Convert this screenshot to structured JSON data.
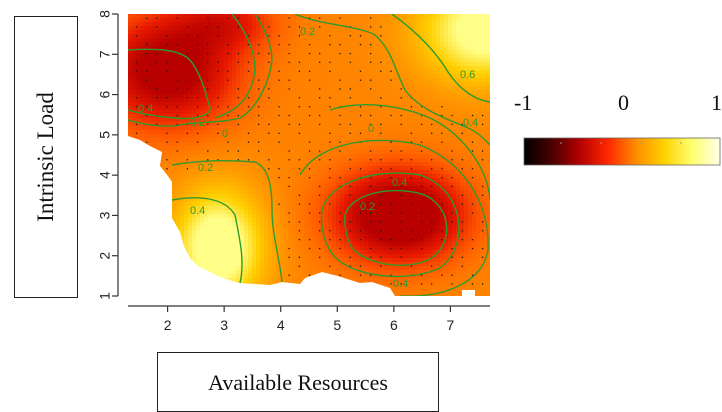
{
  "chart_data": {
    "type": "heatmap",
    "xlabel": "Available Resources",
    "ylabel": "Intrinsic Load",
    "xlim": [
      1.3,
      7.7
    ],
    "ylim": [
      1,
      8
    ],
    "x_ticks": [
      "2",
      "3",
      "4",
      "5",
      "6",
      "7"
    ],
    "y_ticks": [
      "1",
      "2",
      "3",
      "4",
      "5",
      "6",
      "7",
      "8"
    ],
    "contour_levels": [
      0.2,
      0.4,
      0.6
    ],
    "contour_labels": [
      "0.4",
      "0.2",
      "0",
      "0.2",
      "0.4",
      "0.2",
      "0.6",
      "0.4",
      "0",
      "0.4",
      "0.2",
      "0.4"
    ],
    "colorbar": {
      "labels": [
        "-1",
        "0",
        "1"
      ],
      "colors": [
        "#000000",
        "#4a0000",
        "#b30000",
        "#ff2800",
        "#ff8c00",
        "#ffd200",
        "#ffff70",
        "#ffffe8"
      ]
    },
    "features": [
      {
        "kind": "high-red",
        "x": 6.1,
        "y": 3.0,
        "sx": 0.75,
        "sy": 0.75,
        "weight": 0.85
      },
      {
        "kind": "high-red",
        "x": 2.0,
        "y": 6.6,
        "sx": 0.8,
        "sy": 0.9,
        "weight": 0.7
      },
      {
        "kind": "high-red",
        "x": 3.0,
        "y": 7.8,
        "sx": 0.6,
        "sy": 0.5,
        "weight": 0.35
      },
      {
        "kind": "pale-yellow",
        "x": 2.9,
        "y": 2.2,
        "sx": 0.55,
        "sy": 1.0,
        "weight": 0.55
      },
      {
        "kind": "pale-yellow",
        "x": 7.6,
        "y": 7.6,
        "sx": 0.8,
        "sy": 0.9,
        "weight": 0.5
      }
    ]
  }
}
